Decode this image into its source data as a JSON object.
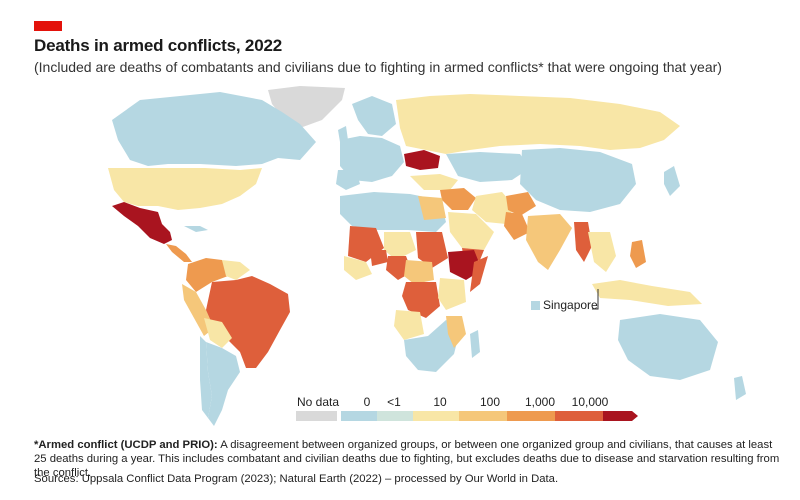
{
  "header": {
    "title": "Deaths in armed conflicts, 2022",
    "subtitle": "(Included are deaths of combatants and civilians due to fighting in armed conflicts* that were ongoing that year)"
  },
  "map": {
    "annotation": "Singapore",
    "colors": {
      "no_data": "#d9d9d9",
      "zero": "#b5d7e2",
      "lt1": "#cfe4dc",
      "c10": "#f8e6a6",
      "c100": "#f5c77a",
      "c1000": "#ee9a4f",
      "c10000": "#de5f3b",
      "max": "#a9141f"
    }
  },
  "legend": {
    "no_data": "No data",
    "ticks": [
      "0",
      "<1",
      "10",
      "100",
      "1,000",
      "10,000"
    ]
  },
  "footnote": {
    "term": "*Armed conflict (UCDP and PRIO):",
    "text": " A disagreement between organized groups, or between one organized group and civilians, that causes at least 25 deaths during a year. This includes combatant and civilian deaths due to fighting, but excludes deaths due to disease and starvation resulting from the conflict.",
    "sources": "Sources: Uppsala Conflict Data Program (2023); Natural Earth (2022) – processed by Our World in Data."
  }
}
